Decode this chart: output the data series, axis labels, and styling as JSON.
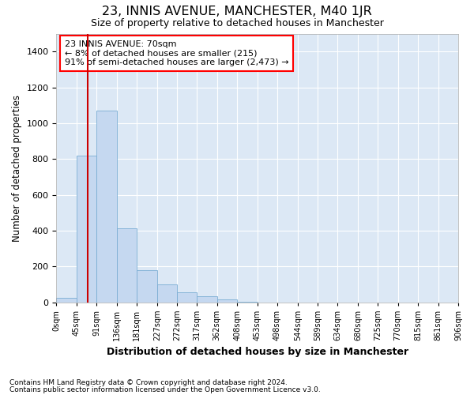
{
  "title": "23, INNIS AVENUE, MANCHESTER, M40 1JR",
  "subtitle": "Size of property relative to detached houses in Manchester",
  "xlabel": "Distribution of detached houses by size in Manchester",
  "ylabel": "Number of detached properties",
  "footnote1": "Contains HM Land Registry data © Crown copyright and database right 2024.",
  "footnote2": "Contains public sector information licensed under the Open Government Licence v3.0.",
  "annotation_line1": "23 INNIS AVENUE: 70sqm",
  "annotation_line2": "← 8% of detached houses are smaller (215)",
  "annotation_line3": "91% of semi-detached houses are larger (2,473) →",
  "bar_color": "#c5d8f0",
  "bar_edge_color": "#7badd4",
  "redline_color": "#cc0000",
  "background_color": "#dce8f5",
  "grid_color": "#ffffff",
  "bin_labels": [
    "0sqm",
    "45sqm",
    "91sqm",
    "136sqm",
    "181sqm",
    "227sqm",
    "272sqm",
    "317sqm",
    "362sqm",
    "408sqm",
    "453sqm",
    "498sqm",
    "544sqm",
    "589sqm",
    "634sqm",
    "680sqm",
    "725sqm",
    "770sqm",
    "815sqm",
    "861sqm",
    "906sqm"
  ],
  "bar_heights": [
    25,
    820,
    1070,
    415,
    180,
    100,
    55,
    35,
    15,
    5,
    0,
    0,
    0,
    0,
    0,
    0,
    0,
    0,
    0,
    0
  ],
  "bin_edges": [
    0,
    45,
    91,
    136,
    181,
    227,
    272,
    317,
    362,
    408,
    453,
    498,
    544,
    589,
    634,
    680,
    725,
    770,
    815,
    861,
    906
  ],
  "ylim": [
    0,
    1500
  ],
  "yticks": [
    0,
    200,
    400,
    600,
    800,
    1000,
    1200,
    1400
  ],
  "redline_x": 70
}
